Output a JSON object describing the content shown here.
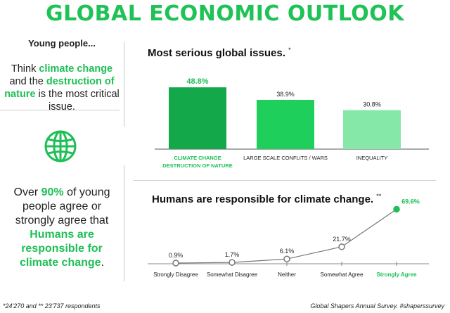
{
  "header": {
    "title": "GLOBAL ECONOMIC OUTLOOK"
  },
  "left": {
    "heading": "Young people...",
    "think_pre": "Think ",
    "think_hl1": "climate change",
    "think_mid": " and the ",
    "think_hl2": "destruction of nature",
    "think_post": " is the most critical issue.",
    "over_pre": "Over ",
    "over_pct": "90%",
    "over_mid": " of young people agree or strongly agree that ",
    "over_hl": "Humans are responsible for climate change",
    "over_post": "."
  },
  "colors": {
    "accent": "#1fbf57",
    "bar1": "#13a84a",
    "bar2": "#1fcf5c",
    "bar3": "#86e8a8"
  },
  "icons": {
    "globe": "globe-icon"
  },
  "chart_data": [
    {
      "type": "bar",
      "title": "Most serious global issues.",
      "title_mark": "*",
      "categories": [
        "CLIMATE CHANGE DESTRUCTION OF NATURE",
        "LARGE SCALE CONFLITS / WARS",
        "INEQUALITY"
      ],
      "category_lines": [
        [
          "CLIMATE CHANGE",
          "DESTRUCTION OF NATURE"
        ],
        [
          "LARGE SCALE CONFLITS / WARS"
        ],
        [
          "INEQUALITY"
        ]
      ],
      "values": [
        48.8,
        38.9,
        30.8
      ],
      "value_labels": [
        "48.8%",
        "38.9%",
        "30.8%"
      ],
      "ylim": [
        0,
        50
      ]
    },
    {
      "type": "line",
      "title": "Humans are responsible for climate change.",
      "title_mark": "**",
      "categories": [
        "Strongly Disagree",
        "Somewhat Disagree",
        "Neither",
        "Somewhat Agree",
        "Strongly Agree"
      ],
      "values": [
        0.9,
        1.7,
        6.1,
        21.7,
        69.6
      ],
      "value_labels": [
        "0.9%",
        "1.7%",
        "6.1%",
        "21.7%",
        "69.6%"
      ],
      "ylim": [
        0,
        70
      ]
    }
  ],
  "footer": {
    "respondents": "*24'270 and ** 23'737 respondents",
    "source": "Global Shapers Annual Survey. #shaperssurvey"
  }
}
